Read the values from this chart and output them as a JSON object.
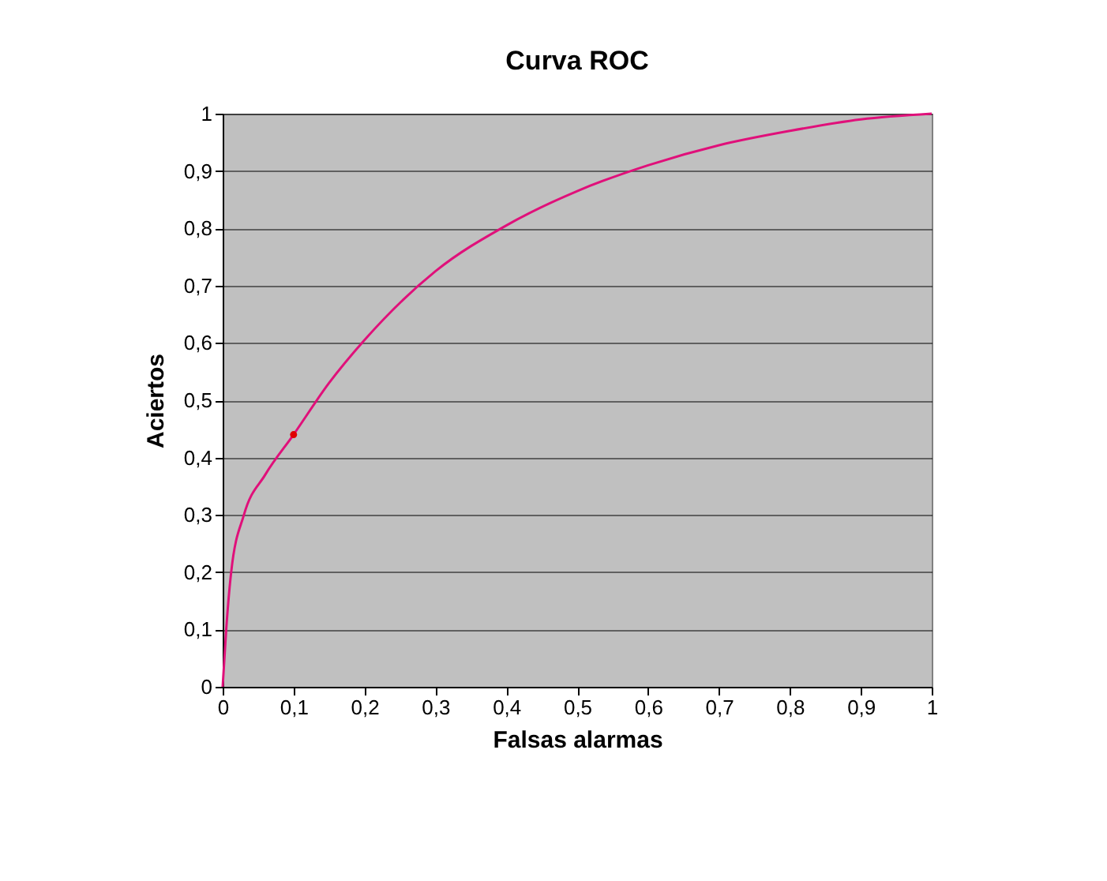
{
  "chart_data": {
    "type": "line",
    "title": "Curva ROC",
    "xlabel": "Falsas alarmas",
    "ylabel": "Aciertos",
    "series": [
      {
        "color": "#e0107a",
        "x": [
          0,
          0.005,
          0.012,
          0.03,
          0.06,
          0.1,
          0.15,
          0.2,
          0.3,
          0.4,
          0.5,
          0.6,
          0.7,
          0.8,
          0.9,
          1
        ],
        "values": [
          0,
          0.1,
          0.2,
          0.3,
          0.37,
          0.44,
          0.53,
          0.605,
          0.725,
          0.805,
          0.865,
          0.91,
          0.945,
          0.97,
          0.99,
          1
        ]
      },
      {
        "type": "scatter",
        "color": "#e00000",
        "marker": "circle",
        "x": [
          0.1
        ],
        "values": [
          0.44
        ]
      }
    ],
    "xlim": [
      0,
      1
    ],
    "ylim": [
      0,
      1
    ],
    "xticks": [
      0,
      {
        "value": 0.1,
        "label": "0,1"
      },
      {
        "value": 0.2,
        "label": "0,2"
      },
      {
        "value": 0.3,
        "label": "0,3"
      },
      {
        "value": 0.4,
        "label": "0,4"
      },
      {
        "value": 0.5,
        "label": "0,5"
      },
      {
        "value": 0.6,
        "label": "0,6"
      },
      {
        "value": 0.7,
        "label": "0,7"
      },
      {
        "value": 0.8,
        "label": "0,8"
      },
      {
        "value": 0.9,
        "label": "0,9"
      },
      1
    ],
    "yticks": [
      0,
      {
        "value": 0.1,
        "label": "0,1"
      },
      {
        "value": 0.2,
        "label": "0,2"
      },
      {
        "value": 0.3,
        "label": "0,3"
      },
      {
        "value": 0.4,
        "label": "0,4"
      },
      {
        "value": 0.5,
        "label": "0,5"
      },
      {
        "value": 0.6,
        "label": "0,6"
      },
      {
        "value": 0.7,
        "label": "0,7"
      },
      {
        "value": 0.8,
        "label": "0,8"
      },
      {
        "value": 0.9,
        "label": "0,9"
      },
      1
    ],
    "grid": "y",
    "legend": false,
    "line_style": "solid"
  }
}
